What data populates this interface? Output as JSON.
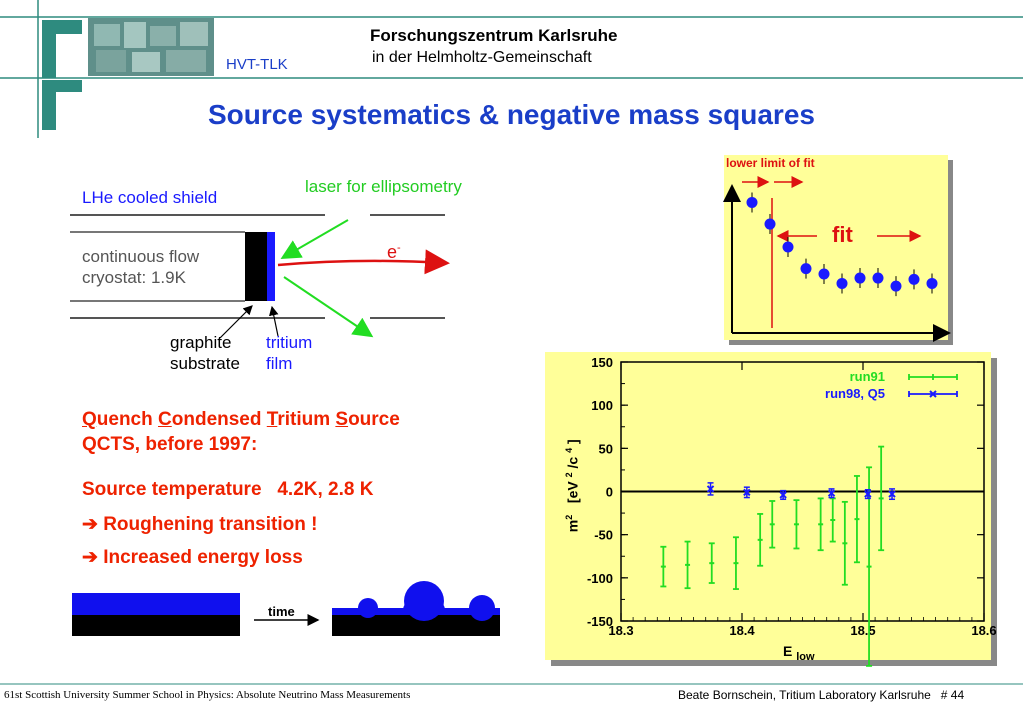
{
  "header": {
    "institute": "Forschungszentrum Karlsruhe",
    "institute_sub": "in  der  Helmholtz-Gemeinschaft",
    "group": "HVT-TLK"
  },
  "title": "Source systematics & negative mass squares",
  "colors": {
    "title_blue": "#1a3ec8",
    "frame_teal": "#2e8b7f",
    "chart_bg": "#ffff99",
    "red_text": "#ee2200",
    "green": "#22dd22",
    "blue_series": "#1a1aff"
  },
  "diagram": {
    "shield_label": "LHe cooled shield",
    "laser_label": "laser for ellipsometry",
    "cryostat_line1": "continuous flow",
    "cryostat_line2": "cryostat:  1.9K",
    "electron_label": "e",
    "electron_sup": "-",
    "graphite_line1": "graphite",
    "graphite_line2": "substrate",
    "tritium_line1": "tritium",
    "tritium_line2": "film"
  },
  "qcts": {
    "line1_parts": [
      "Q",
      "uench ",
      "C",
      "ondensed ",
      "T",
      "ritium ",
      "S",
      "ource"
    ],
    "line2": "QCTS, before 1997:",
    "temp": "Source temperature   4.2K, 2.8 K",
    "bullet1": "Roughening transition !",
    "bullet2": "Increased energy loss",
    "arrow_glyph": "➔",
    "time_label": "time"
  },
  "inset": {
    "lower_limit_label": "lower limit of fit",
    "fit_label": "fit",
    "points_y": [
      0.93,
      0.77,
      0.6,
      0.44,
      0.4,
      0.33,
      0.37,
      0.37,
      0.31,
      0.36,
      0.33
    ]
  },
  "chart_data": {
    "type": "scatter",
    "title": "",
    "xlabel": "E",
    "xlabel_sub": "low",
    "ylabel_parts": [
      "m",
      "2",
      "   [eV ",
      "2",
      " /c ",
      "4",
      " ]"
    ],
    "xlim": [
      18.3,
      18.6
    ],
    "ylim": [
      -150,
      150
    ],
    "x_ticks": [
      "18.3",
      "18.4",
      "18.5",
      "18.6"
    ],
    "y_ticks": [
      "150",
      "100",
      "50",
      "0",
      "-50",
      "-100",
      "-150"
    ],
    "zero_line": true,
    "legend_position": "top-right",
    "series": [
      {
        "name": "run91",
        "color": "#22dd22",
        "x": [
          18.335,
          18.355,
          18.375,
          18.395,
          18.415,
          18.425,
          18.445,
          18.465,
          18.475,
          18.485,
          18.495,
          18.505,
          18.515
        ],
        "y": [
          -87,
          -85,
          -83,
          -83,
          -56,
          -38,
          -38,
          -38,
          -33,
          -60,
          -32,
          -87,
          -8
        ],
        "err": [
          23,
          27,
          23,
          30,
          30,
          27,
          28,
          30,
          25,
          48,
          50,
          115,
          60
        ]
      },
      {
        "name": "run98, Q5",
        "color": "#1a1aff",
        "x": [
          18.374,
          18.404,
          18.434,
          18.474,
          18.504,
          18.524
        ],
        "y": [
          3,
          -1,
          -4,
          -2,
          -3,
          -3
        ],
        "err": [
          7,
          6,
          5,
          5,
          5,
          6
        ]
      }
    ]
  },
  "footer": {
    "left": "61st Scottish University Summer School in Physics: Absolute Neutrino Mass Measurements",
    "right": "Beate Bornschein, Tritium Laboratory Karlsruhe   # 44"
  }
}
